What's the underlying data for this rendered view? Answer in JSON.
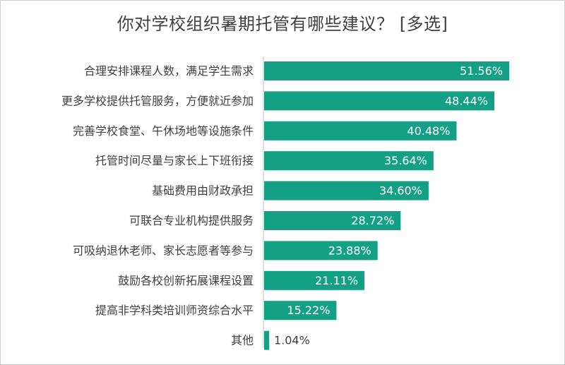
{
  "chart_data": {
    "type": "bar",
    "orientation": "horizontal",
    "title": "你对学校组织暑期托管有哪些建议？ [多选]",
    "categories": [
      "合理安排课程人数，满足学生需求",
      "更多学校提供托管服务，方便就近参加",
      "完善学校食堂、午休场地等设施条件",
      "托管时间尽量与家长上下班衔接",
      "基础费用由财政承担",
      "可联合专业机构提供服务",
      "可吸纳退休老师、家长志愿者等参与",
      "鼓励各校创新拓展课程设置",
      "提高非学科类培训师资综合水平",
      "其他"
    ],
    "values": [
      51.56,
      48.44,
      40.48,
      35.64,
      34.6,
      28.72,
      23.88,
      21.11,
      15.22,
      1.04
    ],
    "value_labels": [
      "51.56%",
      "48.44%",
      "40.48%",
      "35.64%",
      "34.60%",
      "28.72%",
      "23.88%",
      "21.11%",
      "15.22%",
      "1.04%"
    ],
    "bar_color": "#14a085",
    "label_inside_color": "#ffffff",
    "label_outside_color": "#404040",
    "axis_line_color": "#bfbfbf",
    "xlim": [
      0,
      51.56
    ],
    "grid": false,
    "legend": "none"
  }
}
